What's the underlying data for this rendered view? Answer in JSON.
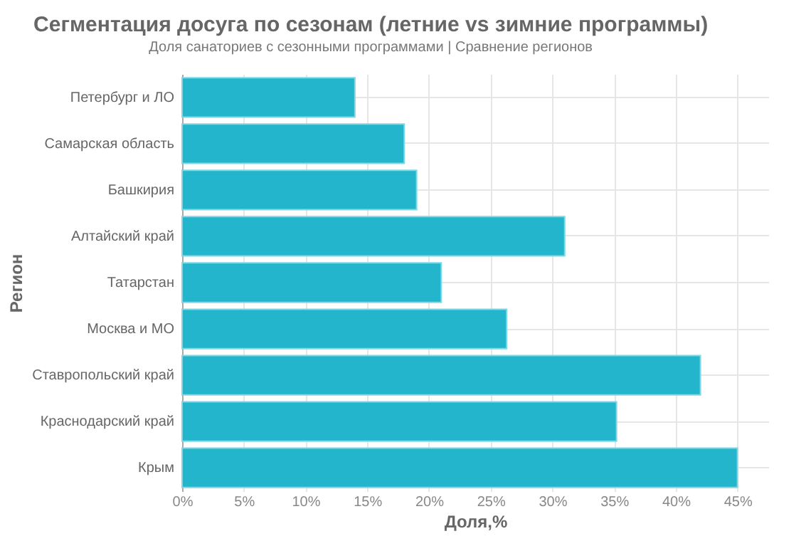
{
  "chart_data": {
    "type": "bar",
    "orientation": "horizontal",
    "title": "Сегментация досуга по сезонам (летние vs зимние программы)",
    "subtitle": "Доля санаториев с сезонными программами | Сравнение регионов",
    "xlabel": "Доля,%",
    "ylabel": "Регион",
    "categories": [
      "Петербург и ЛО",
      "Самарская область",
      "Башкирия",
      "Алтайский край",
      "Татарстан",
      "Москва и МО",
      "Ставропольский край",
      "Краснодарский край",
      "Крым"
    ],
    "values": [
      14,
      18,
      19,
      31,
      21,
      26.3,
      42,
      35.2,
      45
    ],
    "color": "#22b5cb",
    "xlim": [
      0,
      47.5
    ],
    "xticks": [
      {
        "value": 0,
        "label": "0%"
      },
      {
        "value": 5,
        "label": "5%"
      },
      {
        "value": 10,
        "label": "10%"
      },
      {
        "value": 15,
        "label": "15%"
      },
      {
        "value": 20,
        "label": "20%"
      },
      {
        "value": 25,
        "label": "25%"
      },
      {
        "value": 30,
        "label": "30%"
      },
      {
        "value": 35,
        "label": "35%"
      },
      {
        "value": 40,
        "label": "40%"
      },
      {
        "value": 45,
        "label": "45%"
      }
    ],
    "grid": true
  }
}
